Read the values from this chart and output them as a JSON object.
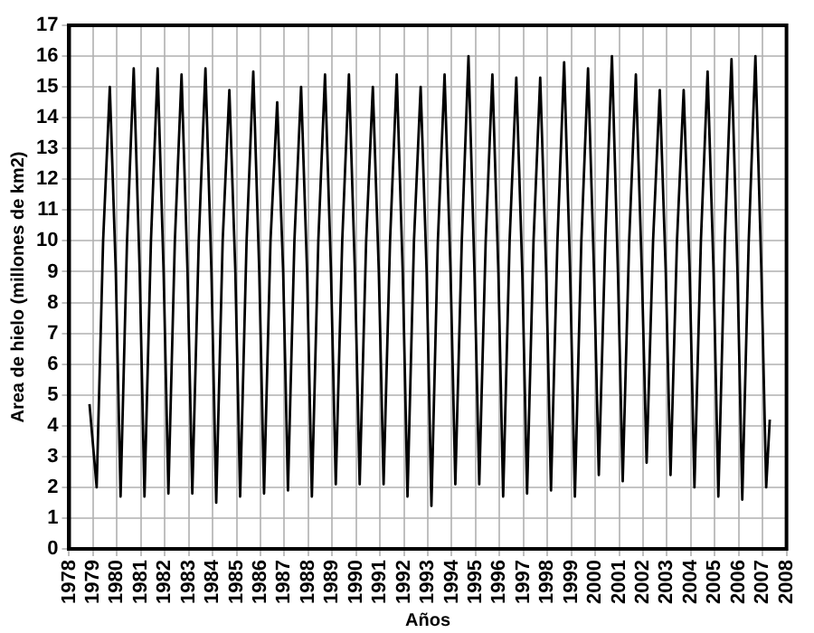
{
  "chart_data": {
    "type": "line",
    "xlabel": "Años",
    "ylabel": "Area de hielo (millones de km2)",
    "xlim": [
      1978,
      2008
    ],
    "xticks": [
      1978,
      1979,
      1980,
      1981,
      1982,
      1983,
      1984,
      1985,
      1986,
      1987,
      1988,
      1989,
      1990,
      1991,
      1992,
      1993,
      1994,
      1995,
      1996,
      1997,
      1998,
      1999,
      2000,
      2001,
      2002,
      2003,
      2004,
      2005,
      2006,
      2007,
      2008
    ],
    "ylim": [
      0,
      17
    ],
    "yticks": [
      0,
      1,
      2,
      3,
      4,
      5,
      6,
      7,
      8,
      9,
      10,
      11,
      12,
      13,
      14,
      15,
      16,
      17
    ],
    "grid": true,
    "legend": false,
    "marker": "none",
    "line_style": "solid",
    "series": [
      {
        "color": "#000000",
        "x": [
          1978.85,
          1979.15,
          1979.42,
          1979.7,
          1979.95,
          1980.15,
          1980.42,
          1980.7,
          1980.95,
          1981.15,
          1981.42,
          1981.7,
          1981.95,
          1982.15,
          1982.42,
          1982.7,
          1982.95,
          1983.15,
          1983.42,
          1983.7,
          1983.95,
          1984.15,
          1984.42,
          1984.7,
          1984.95,
          1985.15,
          1985.42,
          1985.7,
          1985.95,
          1986.15,
          1986.42,
          1986.7,
          1986.95,
          1987.15,
          1987.42,
          1987.7,
          1987.95,
          1988.15,
          1988.42,
          1988.7,
          1988.95,
          1989.15,
          1989.42,
          1989.7,
          1989.95,
          1990.15,
          1990.42,
          1990.7,
          1990.95,
          1991.15,
          1991.42,
          1991.7,
          1991.95,
          1992.15,
          1992.42,
          1992.7,
          1992.95,
          1993.15,
          1993.42,
          1993.7,
          1993.95,
          1994.15,
          1994.42,
          1994.7,
          1994.95,
          1995.15,
          1995.42,
          1995.7,
          1995.95,
          1996.15,
          1996.42,
          1996.7,
          1996.95,
          1997.15,
          1997.42,
          1997.7,
          1997.95,
          1998.15,
          1998.42,
          1998.7,
          1998.95,
          1999.15,
          1999.42,
          1999.7,
          1999.95,
          2000.15,
          2000.42,
          2000.7,
          2000.95,
          2001.15,
          2001.42,
          2001.7,
          2001.95,
          2002.15,
          2002.42,
          2002.7,
          2002.95,
          2003.15,
          2003.42,
          2003.7,
          2003.95,
          2004.15,
          2004.42,
          2004.7,
          2004.95,
          2005.15,
          2005.42,
          2005.7,
          2005.95,
          2006.15,
          2006.42,
          2006.7,
          2006.95,
          2007.15,
          2007.3
        ],
        "values": [
          4.7,
          2.0,
          10,
          15.0,
          9,
          1.7,
          10,
          15.6,
          9,
          1.7,
          10,
          15.6,
          9,
          1.8,
          10,
          15.4,
          9,
          1.8,
          10,
          15.6,
          9,
          1.5,
          10,
          14.9,
          9,
          1.7,
          10,
          15.5,
          9,
          1.8,
          10,
          14.5,
          9,
          1.9,
          10,
          15.0,
          9,
          1.7,
          10,
          15.4,
          9,
          2.1,
          10,
          15.4,
          9,
          2.1,
          10,
          15.0,
          9,
          2.1,
          10,
          15.4,
          9,
          1.7,
          10,
          15.0,
          9,
          1.4,
          10,
          15.4,
          9,
          2.1,
          10,
          16.0,
          9,
          2.1,
          10,
          15.4,
          9,
          1.7,
          10,
          15.3,
          9,
          1.8,
          10,
          15.3,
          9,
          1.9,
          10,
          15.8,
          9,
          1.7,
          10,
          15.6,
          9,
          2.4,
          10,
          16.0,
          9,
          2.2,
          10,
          15.4,
          9,
          2.8,
          10,
          14.9,
          9,
          2.4,
          10,
          14.9,
          9,
          2.0,
          10,
          15.5,
          9,
          1.7,
          10,
          15.9,
          9,
          1.6,
          10,
          16.0,
          9,
          2.0,
          4.2
        ]
      }
    ]
  }
}
